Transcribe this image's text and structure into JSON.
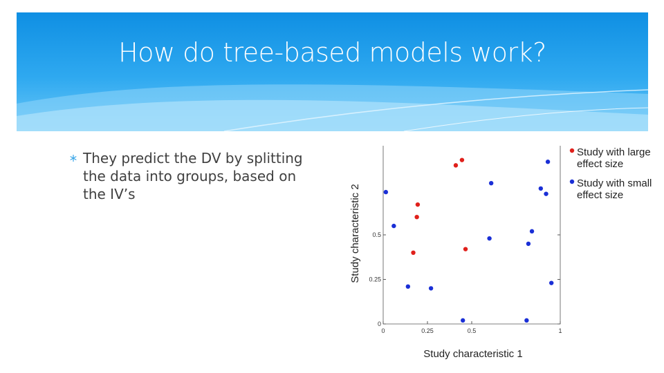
{
  "slide": {
    "title": "How do tree-based models work?",
    "bullet": "They predict the DV by splitting the data into groups, based on the IV’s"
  },
  "chart_data": {
    "type": "scatter",
    "x_label": "Study characteristic 1",
    "y_label": "Study characteristic 2",
    "xlim": [
      0,
      1
    ],
    "ylim": [
      0,
      1
    ],
    "xticks": [
      0,
      0.25,
      0.5,
      1
    ],
    "yticks": [
      0,
      0.25,
      0.5
    ],
    "series": [
      {
        "name": "Study with large effect size",
        "color": "#e0201b",
        "x": [
          0.41,
          0.445,
          0.195,
          0.19,
          0.17,
          0.465
        ],
        "values": [
          0.89,
          0.92,
          0.67,
          0.6,
          0.4,
          0.42
        ]
      },
      {
        "name": "Study with small effect size",
        "color": "#1a2fd6",
        "x": [
          0.015,
          0.06,
          0.14,
          0.27,
          0.45,
          0.61,
          0.6,
          0.81,
          0.82,
          0.84,
          0.89,
          0.92,
          0.93,
          0.95
        ],
        "values": [
          0.74,
          0.55,
          0.21,
          0.2,
          0.02,
          0.79,
          0.48,
          0.02,
          0.45,
          0.52,
          0.76,
          0.73,
          0.91,
          0.23
        ]
      }
    ]
  }
}
